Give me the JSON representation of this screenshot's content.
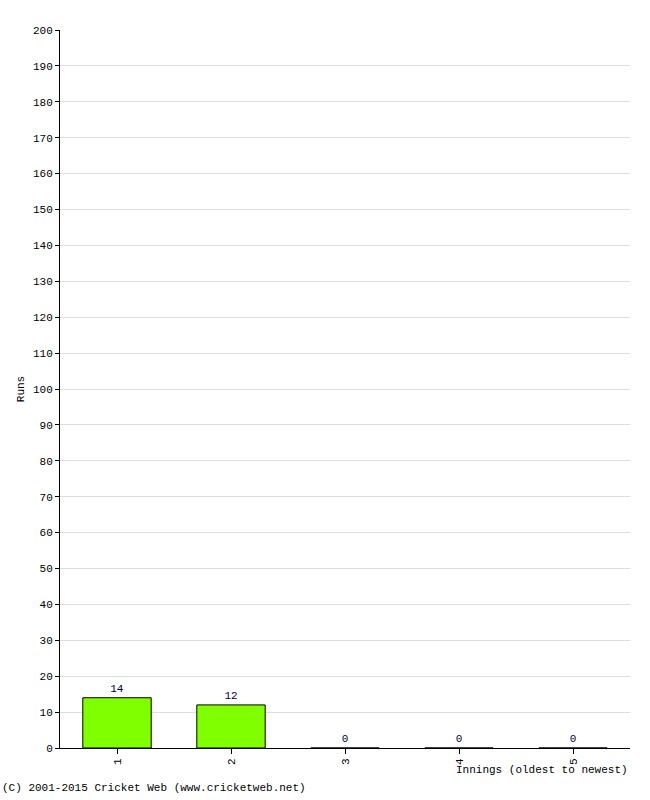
{
  "chart_data": {
    "type": "bar",
    "categories": [
      "1",
      "2",
      "3",
      "4",
      "5"
    ],
    "values": [
      14,
      12,
      0,
      0,
      0
    ],
    "color": "#80ff00",
    "x_label": "Innings (oldest to newest)",
    "y_label": "Runs",
    "ylim": [
      0,
      200
    ],
    "yticks": [
      0,
      10,
      20,
      30,
      40,
      50,
      60,
      70,
      80,
      90,
      100,
      110,
      120,
      130,
      140,
      150,
      160,
      170,
      180,
      190,
      200
    ],
    "grid": true,
    "data_labels": true,
    "annotations": [
      "(C) 2001-2015 Cricket Web (www.cricketweb.net)"
    ]
  }
}
